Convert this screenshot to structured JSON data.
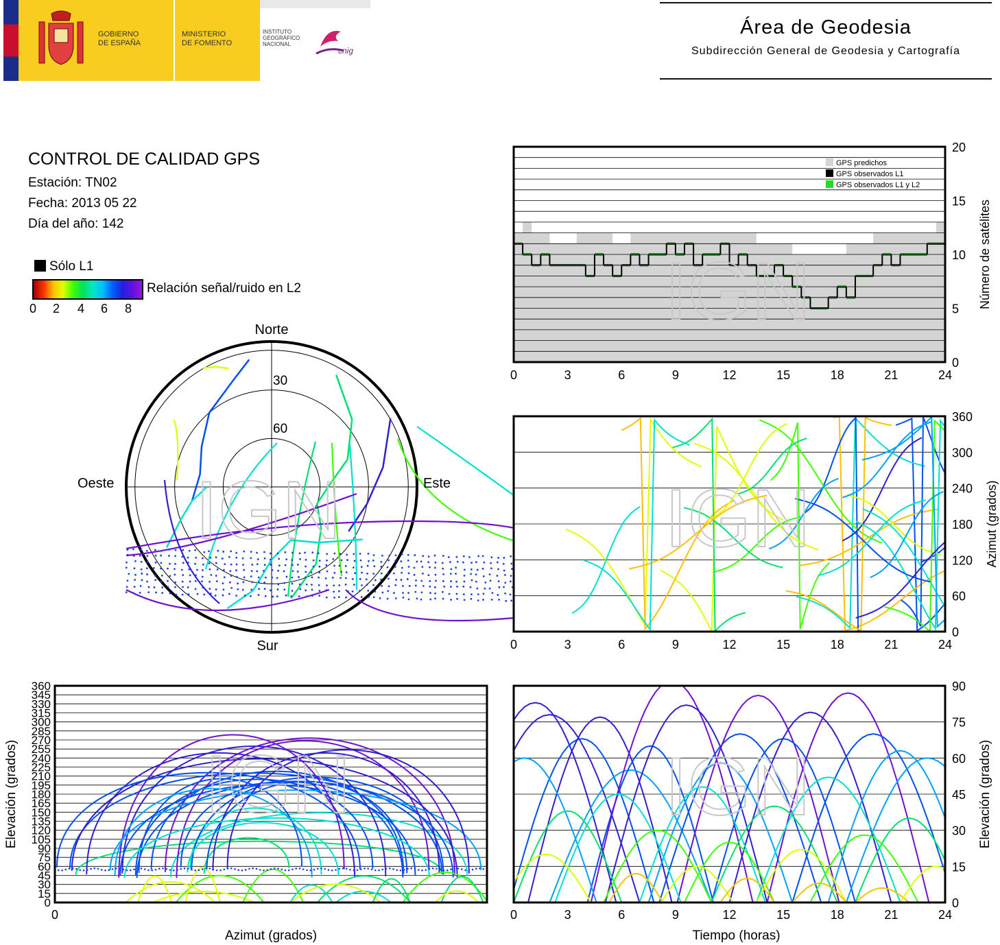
{
  "header": {
    "gov_line1": "GOBIERNO",
    "gov_line2": "DE ESPAÑA",
    "min_line1": "MINISTERIO",
    "min_line2": "DE FOMENTO",
    "inst_line1": "INSTITUTO",
    "inst_line2": "GEOGRÁFICO",
    "inst_line3": "NACIONAL",
    "cnig": "cnig",
    "area_title": "Área de Geodesia",
    "area_subtitle": "Subdirección General de Geodesia y Cartografía"
  },
  "info": {
    "title": "CONTROL DE CALIDAD GPS",
    "station": "Estación: TN02",
    "date": "Fecha: 2013 05 22",
    "doy": "Día del año: 142"
  },
  "legend": {
    "solo_l1": "Sólo L1",
    "colorbar_label": "Relación señal/ruido en L2",
    "colorbar_ticks": [
      "0",
      "2",
      "4",
      "6",
      "8"
    ]
  },
  "watermark": "IGN",
  "colors": {
    "predicted": "#d4d4d4",
    "observed_l1": "#000000",
    "observed_l1_l2": "#1fe01f",
    "snr_scale": [
      "#c00000",
      "#ff4000",
      "#ffc000",
      "#e0ff00",
      "#40ff00",
      "#00e070",
      "#00e0d0",
      "#00a0ff",
      "#0050f0",
      "#3020d0",
      "#7010d0"
    ]
  },
  "chart_data": [
    {
      "id": "sat_count",
      "type": "area",
      "x": [
        0,
        0.5,
        1,
        1.5,
        2,
        2.5,
        3,
        3.5,
        4,
        4.5,
        5,
        5.5,
        6,
        6.5,
        7,
        7.5,
        8,
        8.5,
        9,
        9.5,
        10,
        10.5,
        11,
        11.5,
        12,
        12.5,
        13,
        13.5,
        14,
        14.5,
        15,
        15.5,
        16,
        16.5,
        17,
        17.5,
        18,
        18.5,
        19,
        19.5,
        20,
        20.5,
        21,
        21.5,
        22,
        22.5,
        23,
        23.5,
        24
      ],
      "predicted": [
        12,
        13,
        12,
        12,
        11,
        11,
        11,
        12,
        12,
        12,
        12,
        11,
        11,
        12,
        12,
        12,
        12,
        12,
        12,
        12,
        12,
        12,
        12,
        12,
        12,
        12,
        12,
        11,
        11,
        11,
        11,
        10,
        10,
        10,
        10,
        10,
        10,
        11,
        11,
        11,
        12,
        12,
        12,
        12,
        12,
        12,
        12,
        13,
        13
      ],
      "observed_l1": [
        11,
        10,
        9,
        10,
        9,
        9,
        9,
        9,
        8,
        10,
        9,
        8,
        9,
        10,
        9,
        10,
        10,
        11,
        10,
        11,
        9,
        10,
        10,
        11,
        9,
        10,
        9,
        8,
        8,
        9,
        8,
        7,
        6,
        5,
        5,
        6,
        7,
        6,
        8,
        8,
        9,
        10,
        9,
        10,
        10,
        10,
        11,
        11,
        12
      ],
      "observed_l1_l2": [
        11,
        10,
        9,
        10,
        9,
        9,
        9,
        9,
        8,
        10,
        9,
        8,
        9,
        10,
        9,
        10,
        10,
        11,
        10,
        11,
        9,
        10,
        10,
        11,
        9,
        10,
        9,
        8,
        8,
        9,
        8,
        7,
        6,
        5,
        5,
        6,
        7,
        6,
        8,
        8,
        9,
        10,
        9,
        10,
        10,
        10,
        11,
        11,
        12
      ],
      "legend": [
        "GPS predichos",
        "GPS observados L1",
        "GPS observados L1 y L2"
      ],
      "xticks": [
        "0",
        "3",
        "6",
        "9",
        "12",
        "15",
        "18",
        "21",
        "24"
      ],
      "yticks": [
        "0",
        "5",
        "10",
        "15",
        "20"
      ],
      "ylabel": "Número de satélites",
      "xlim": [
        0,
        24
      ],
      "ylim": [
        0,
        20
      ]
    },
    {
      "id": "skyplot",
      "type": "scatter",
      "labels": {
        "n": "Norte",
        "s": "Sur",
        "e": "Este",
        "w": "Oeste"
      },
      "ring_labels": [
        "30",
        "60"
      ],
      "tracks": [
        {
          "az": [
            350,
            340,
            320,
            300,
            280,
            260
          ],
          "el": [
            10,
            20,
            30,
            40,
            45,
            40
          ],
          "snr": 6
        },
        {
          "az": [
            30,
            50,
            70,
            90,
            110,
            130,
            150,
            170
          ],
          "el": [
            10,
            25,
            40,
            55,
            60,
            50,
            35,
            20
          ],
          "snr": 4
        },
        {
          "az": [
            330,
            335,
            340
          ],
          "el": [
            5,
            8,
            12
          ],
          "snr": 2
        },
        {
          "az": [
            200,
            190,
            180,
            160,
            140,
            120
          ],
          "el": [
            10,
            25,
            45,
            55,
            45,
            25
          ],
          "snr": 5
        },
        {
          "az": [
            60,
            80,
            100,
            120
          ],
          "el": [
            5,
            20,
            30,
            35
          ],
          "snr": 7
        },
        {
          "az": [
            240,
            250,
            260,
            270
          ],
          "el": [
            15,
            30,
            40,
            50
          ],
          "snr": 5
        }
      ]
    },
    {
      "id": "azimuth_time",
      "type": "line",
      "xlabel": "",
      "ylabel": "Azimut (grados)",
      "xticks": [
        "0",
        "3",
        "6",
        "9",
        "12",
        "15",
        "18",
        "21",
        "24"
      ],
      "yticks": [
        "0",
        "60",
        "120",
        "180",
        "240",
        "300",
        "360"
      ],
      "xlim": [
        0,
        24
      ],
      "ylim": [
        0,
        360
      ]
    },
    {
      "id": "elev_azimuth",
      "type": "line",
      "xlabel": "Azimut (grados)",
      "ylabel": "Elevación (grados)",
      "xticks": [
        "0"
      ],
      "yticks": [
        "0",
        "15",
        "30",
        "45",
        "60",
        "75",
        "90",
        "105",
        "120",
        "135",
        "150",
        "165",
        "180",
        "195",
        "210",
        "225",
        "240",
        "255",
        "270",
        "285",
        "300",
        "315",
        "330",
        "345",
        "360"
      ],
      "ylim": [
        0,
        360
      ]
    },
    {
      "id": "elev_time",
      "type": "line",
      "xlabel": "Tiempo (horas)",
      "ylabel": "Elevación (grados)",
      "xticks": [
        "0",
        "3",
        "6",
        "9",
        "12",
        "15",
        "18",
        "21",
        "24"
      ],
      "yticks": [
        "0",
        "15",
        "30",
        "45",
        "60",
        "75",
        "90"
      ],
      "xlim": [
        0,
        24
      ],
      "ylim": [
        0,
        90
      ],
      "series": [
        {
          "peak_time": 1.2,
          "peak_el": 83,
          "dur": 9
        },
        {
          "peak_time": 2.0,
          "peak_el": 78,
          "dur": 10
        },
        {
          "peak_time": 3.8,
          "peak_el": 68,
          "dur": 8
        },
        {
          "peak_time": 4.8,
          "peak_el": 77,
          "dur": 8
        },
        {
          "peak_time": 6.5,
          "peak_el": 55,
          "dur": 9
        },
        {
          "peak_time": 7.6,
          "peak_el": 65,
          "dur": 7
        },
        {
          "peak_time": 8.8,
          "peak_el": 92,
          "dur": 9
        },
        {
          "peak_time": 9.6,
          "peak_el": 82,
          "dur": 9
        },
        {
          "peak_time": 11.5,
          "peak_el": 58,
          "dur": 8
        },
        {
          "peak_time": 12.6,
          "peak_el": 70,
          "dur": 9
        },
        {
          "peak_time": 13.6,
          "peak_el": 86,
          "dur": 9
        },
        {
          "peak_time": 15.0,
          "peak_el": 68,
          "dur": 8
        },
        {
          "peak_time": 16.5,
          "peak_el": 79,
          "dur": 9
        },
        {
          "peak_time": 18.6,
          "peak_el": 87,
          "dur": 9
        },
        {
          "peak_time": 20.0,
          "peak_el": 70,
          "dur": 9
        },
        {
          "peak_time": 21.5,
          "peak_el": 63,
          "dur": 8
        },
        {
          "peak_time": 23.0,
          "peak_el": 60,
          "dur": 9
        },
        {
          "peak_time": 0.6,
          "peak_el": 60,
          "dur": 8
        },
        {
          "peak_time": 5.8,
          "peak_el": 45,
          "dur": 7
        },
        {
          "peak_time": 10.5,
          "peak_el": 48,
          "dur": 7
        },
        {
          "peak_time": 14.5,
          "peak_el": 40,
          "dur": 7
        },
        {
          "peak_time": 17.5,
          "peak_el": 52,
          "dur": 8
        },
        {
          "peak_time": 22.0,
          "peak_el": 35,
          "dur": 6
        },
        {
          "peak_time": 3.0,
          "peak_el": 38,
          "dur": 6
        },
        {
          "peak_time": 8.0,
          "peak_el": 30,
          "dur": 6
        },
        {
          "peak_time": 12.0,
          "peak_el": 25,
          "dur": 5
        },
        {
          "peak_time": 16.0,
          "peak_el": 22,
          "dur": 5
        },
        {
          "peak_time": 19.5,
          "peak_el": 28,
          "dur": 6
        },
        {
          "peak_time": 1.8,
          "peak_el": 20,
          "dur": 5
        },
        {
          "peak_time": 6.8,
          "peak_el": 12,
          "dur": 3
        },
        {
          "peak_time": 10.2,
          "peak_el": 15,
          "dur": 4
        },
        {
          "peak_time": 13.0,
          "peak_el": 10,
          "dur": 3
        },
        {
          "peak_time": 17.0,
          "peak_el": 8,
          "dur": 3
        },
        {
          "peak_time": 20.5,
          "peak_el": 6,
          "dur": 3
        },
        {
          "peak_time": 23.5,
          "peak_el": 15,
          "dur": 4
        }
      ]
    }
  ]
}
